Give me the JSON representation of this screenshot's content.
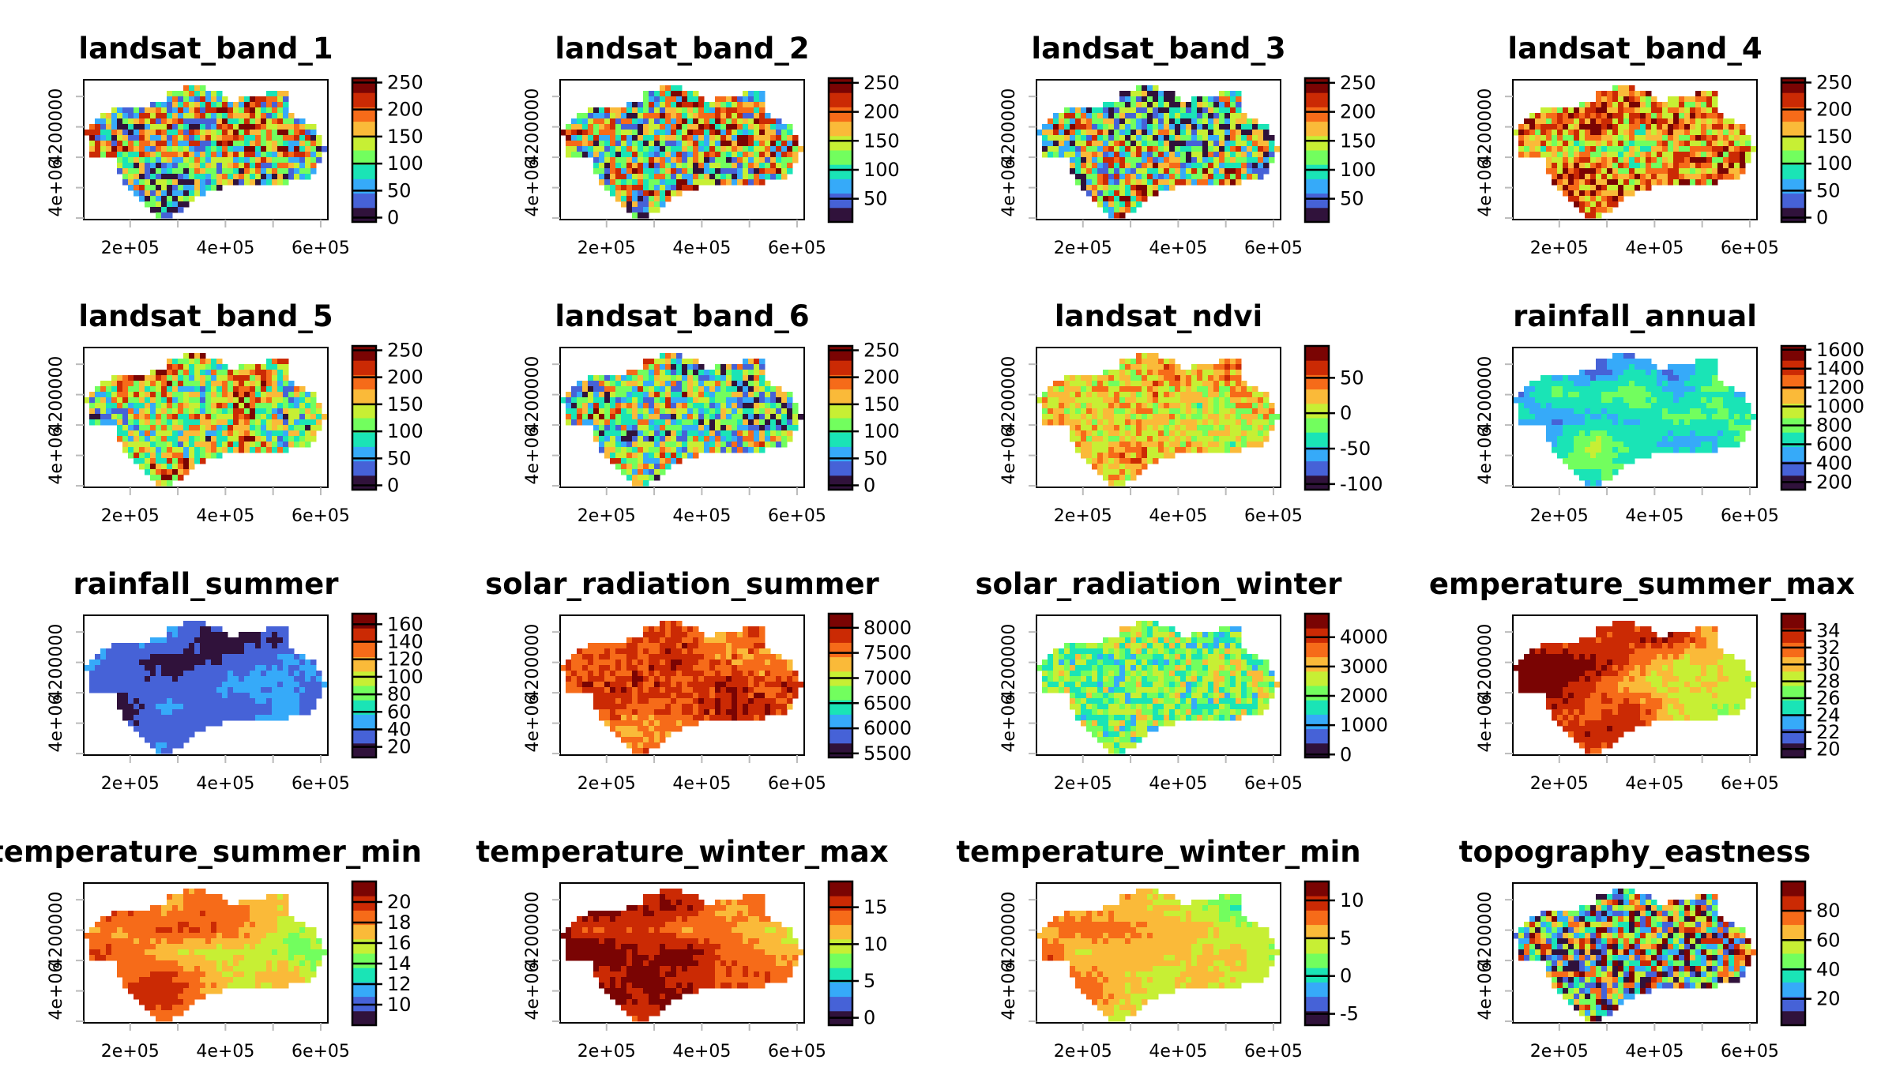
{
  "chart_data": [
    {
      "type": "heatmap",
      "title": "landsat_band_1",
      "legend_ticks": [
        0,
        50,
        100,
        150,
        200,
        250
      ],
      "legend_range": [
        -8,
        258
      ]
    },
    {
      "type": "heatmap",
      "title": "landsat_band_2",
      "legend_ticks": [
        50,
        100,
        150,
        200,
        250
      ],
      "legend_range": [
        10,
        258
      ]
    },
    {
      "type": "heatmap",
      "title": "landsat_band_3",
      "legend_ticks": [
        50,
        100,
        150,
        200,
        250
      ],
      "legend_range": [
        10,
        258
      ]
    },
    {
      "type": "heatmap",
      "title": "landsat_band_4",
      "legend_ticks": [
        0,
        50,
        100,
        150,
        200,
        250
      ],
      "legend_range": [
        -8,
        258
      ]
    },
    {
      "type": "heatmap",
      "title": "landsat_band_5",
      "legend_ticks": [
        0,
        50,
        100,
        150,
        200,
        250
      ],
      "legend_range": [
        -8,
        258
      ]
    },
    {
      "type": "heatmap",
      "title": "landsat_band_6",
      "legend_ticks": [
        0,
        50,
        100,
        150,
        200,
        250
      ],
      "legend_range": [
        -8,
        258
      ]
    },
    {
      "type": "heatmap",
      "title": "landsat_ndvi",
      "legend_ticks": [
        -100,
        -50,
        0,
        50
      ],
      "legend_range": [
        -108,
        95
      ]
    },
    {
      "type": "heatmap",
      "title": "rainfall_annual",
      "legend_ticks": [
        200,
        400,
        600,
        800,
        1000,
        1200,
        1400,
        1600
      ],
      "legend_range": [
        120,
        1640
      ]
    },
    {
      "type": "heatmap",
      "title": "rainfall_summer",
      "legend_ticks": [
        20,
        40,
        60,
        80,
        100,
        120,
        140,
        160
      ],
      "legend_range": [
        8,
        172
      ]
    },
    {
      "type": "heatmap",
      "title": "solar_radiation_summer",
      "legend_ticks": [
        5500,
        6000,
        6500,
        7000,
        7500,
        8000
      ],
      "legend_range": [
        5420,
        8280
      ]
    },
    {
      "type": "heatmap",
      "title": "solar_radiation_winter",
      "legend_ticks": [
        0,
        1000,
        2000,
        3000,
        4000
      ],
      "legend_range": [
        -100,
        4800
      ]
    },
    {
      "type": "heatmap",
      "title": "temperature_summer_max",
      "legend_ticks": [
        20,
        22,
        24,
        26,
        28,
        30,
        32,
        34
      ],
      "legend_range": [
        19,
        36
      ]
    },
    {
      "type": "heatmap",
      "title": "temperature_summer_min",
      "legend_ticks": [
        10,
        12,
        14,
        16,
        18,
        20
      ],
      "legend_range": [
        8,
        22
      ]
    },
    {
      "type": "heatmap",
      "title": "temperature_winter_max",
      "legend_ticks": [
        0,
        5,
        10,
        15
      ],
      "legend_range": [
        -1,
        18.5
      ]
    },
    {
      "type": "heatmap",
      "title": "temperature_winter_min",
      "legend_ticks": [
        -5,
        0,
        5,
        10
      ],
      "legend_range": [
        -6.5,
        12.5
      ]
    },
    {
      "type": "heatmap",
      "title": "topography_eastness",
      "legend_ticks": [
        20,
        40,
        60,
        80
      ],
      "legend_range": [
        2,
        100
      ]
    }
  ],
  "axes": {
    "x_ticks": [
      200000,
      300000,
      400000,
      500000,
      600000
    ],
    "x_tick_labels": [
      "2e+05",
      "",
      "4e+05",
      "",
      "6e+05"
    ],
    "xlim": [
      102500,
      615000
    ],
    "y_ticks": [
      3900000,
      4000000,
      4100000,
      4200000,
      4300000
    ],
    "y_tick_labels": [
      "",
      "4e+06",
      "",
      "4200000",
      ""
    ],
    "ylim": [
      3895000,
      4355000
    ]
  },
  "palette": [
    "#30123B",
    "#4662D7",
    "#36AAF9",
    "#1AE4B6",
    "#72FE5E",
    "#C7EF34",
    "#FABA39",
    "#F66B19",
    "#CB2A04",
    "#7A0403"
  ]
}
